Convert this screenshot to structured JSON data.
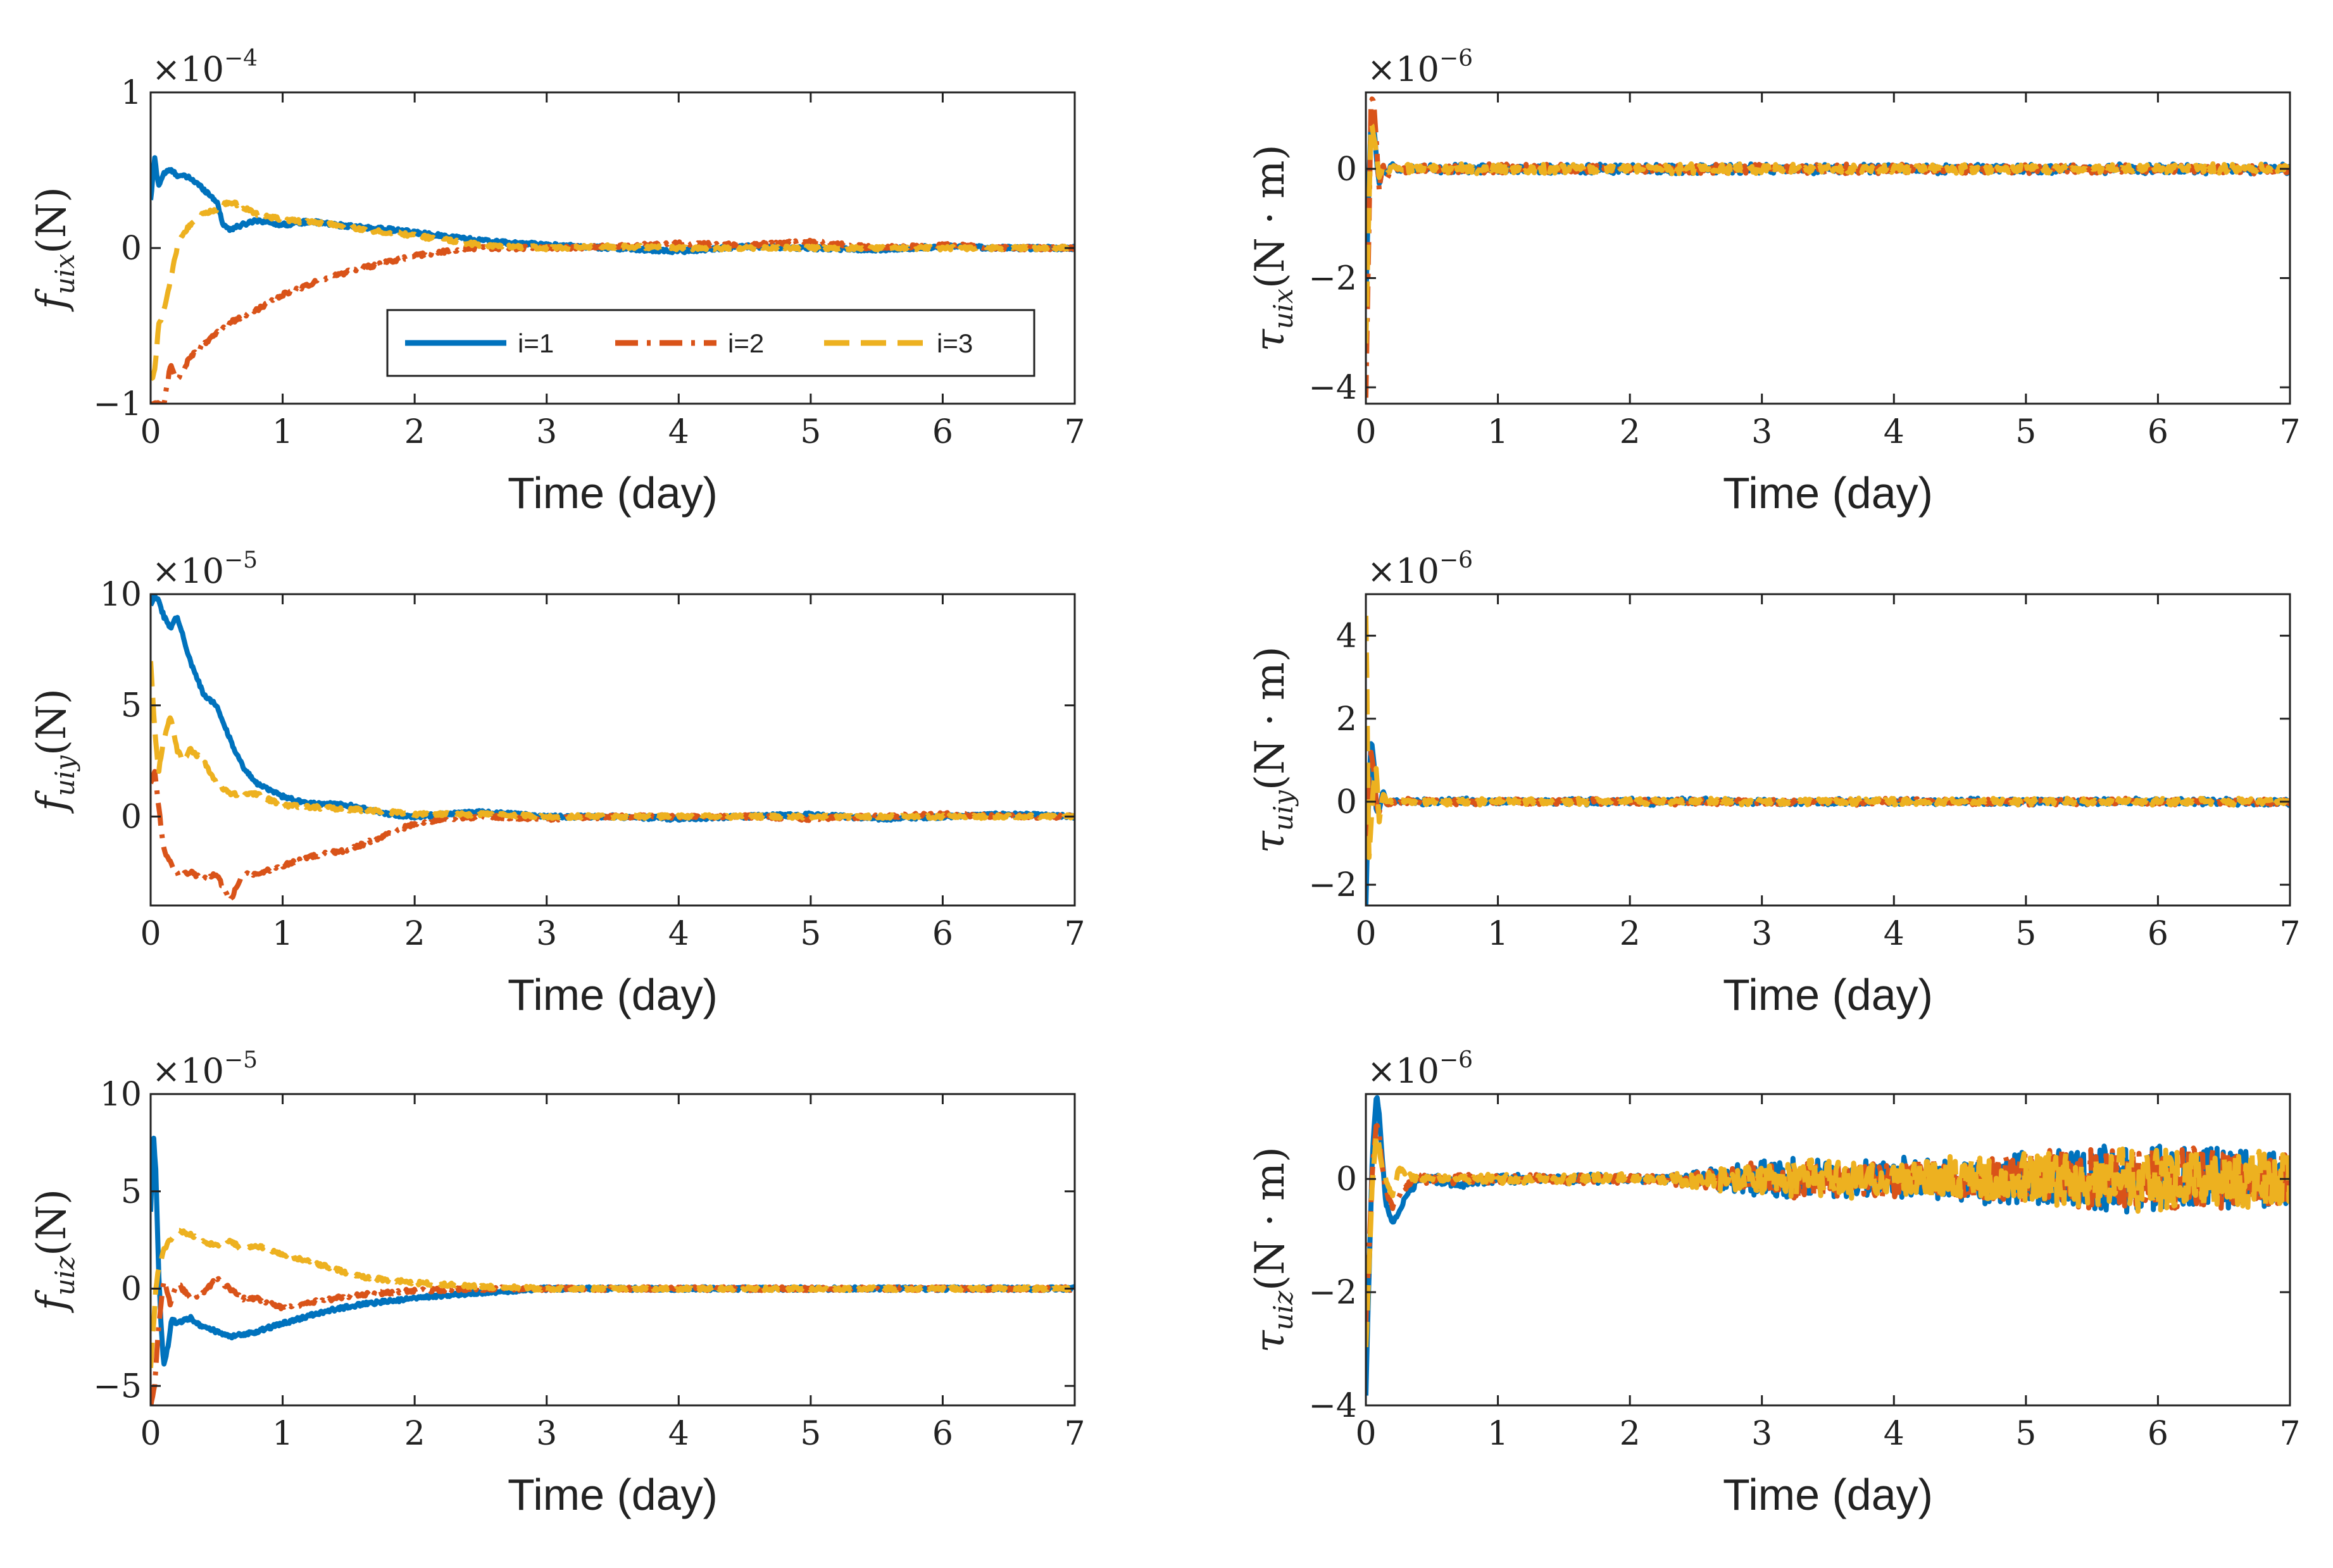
{
  "colors": {
    "series1": "#0072BD",
    "series2": "#D95319",
    "series3": "#EDB120",
    "axis": "#222222"
  },
  "legend": {
    "placement": "top-left panel, lower-right",
    "entries": [
      "i=1",
      "i=2",
      "i=3"
    ]
  },
  "chart_data": [
    {
      "type": "line",
      "id": "fuix",
      "ylabel": {
        "sym": "f",
        "sub": "uix",
        "unit": "(N)"
      },
      "exponent": {
        "base": "×10",
        "power": "−4"
      },
      "xlabel": "Time (day)",
      "xlim": [
        0,
        7
      ],
      "ylim": [
        -1,
        1
      ],
      "xticks": [
        "0",
        "1",
        "2",
        "3",
        "4",
        "5",
        "6",
        "7"
      ],
      "yticks": [
        {
          "v": -1,
          "t": "−1"
        },
        {
          "v": 0,
          "t": "0"
        },
        {
          "v": 1,
          "t": "1"
        }
      ],
      "series": [
        {
          "name": "i=1",
          "x": [
            0,
            0.03,
            0.06,
            0.1,
            0.15,
            0.2,
            0.3,
            0.4,
            0.5,
            0.55,
            0.6,
            0.7,
            0.8,
            1.0,
            1.2,
            1.5,
            1.8,
            2.2,
            2.6,
            3,
            3.5,
            4,
            4.5,
            5,
            5.5,
            6,
            6.5,
            7
          ],
          "values": [
            0.3,
            0.58,
            0.4,
            0.48,
            0.5,
            0.47,
            0.45,
            0.38,
            0.3,
            0.15,
            0.12,
            0.15,
            0.18,
            0.15,
            0.17,
            0.14,
            0.12,
            0.08,
            0.04,
            0.02,
            0.0,
            -0.02,
            0.01,
            0.0,
            -0.01,
            0.01,
            0.0,
            0.0
          ]
        },
        {
          "name": "i=2",
          "x": [
            0,
            0.05,
            0.1,
            0.15,
            0.2,
            0.3,
            0.4,
            0.5,
            0.6,
            0.8,
            1.0,
            1.3,
            1.6,
            2.0,
            2.4,
            3,
            3.5,
            4,
            4.5,
            5,
            5.5,
            6,
            6.5,
            7
          ],
          "values": [
            -1.0,
            -1.0,
            -1.0,
            -0.75,
            -0.85,
            -0.7,
            -0.62,
            -0.55,
            -0.48,
            -0.4,
            -0.3,
            -0.2,
            -0.13,
            -0.05,
            0.0,
            0.0,
            0.01,
            0.03,
            0.02,
            0.04,
            0.0,
            0.02,
            0.0,
            0.0
          ]
        },
        {
          "name": "i=3",
          "x": [
            0,
            0.03,
            0.06,
            0.1,
            0.15,
            0.2,
            0.25,
            0.3,
            0.4,
            0.5,
            0.6,
            0.8,
            1.0,
            1.3,
            1.6,
            2.0,
            2.5,
            3,
            3.5,
            4,
            4.5,
            5,
            5.5,
            6,
            6.5,
            7
          ],
          "values": [
            -0.85,
            -0.8,
            -0.5,
            -0.4,
            -0.2,
            0.0,
            0.1,
            0.15,
            0.22,
            0.25,
            0.3,
            0.22,
            0.18,
            0.16,
            0.12,
            0.08,
            0.02,
            0.0,
            0.01,
            0.0,
            0.0,
            0.0,
            0.0,
            0.0,
            0.0,
            0.0
          ]
        }
      ]
    },
    {
      "type": "line",
      "id": "tuix",
      "ylabel": {
        "sym": "τ",
        "sub": "uix",
        "unit": "(N · m)"
      },
      "exponent": {
        "base": "×10",
        "power": "−6"
      },
      "xlabel": "Time (day)",
      "xlim": [
        0,
        7
      ],
      "ylim": [
        -4.3,
        1.4
      ],
      "xticks": [
        "0",
        "1",
        "2",
        "3",
        "4",
        "5",
        "6",
        "7"
      ],
      "yticks": [
        {
          "v": -4,
          "t": "−4"
        },
        {
          "v": -2,
          "t": "−2"
        },
        {
          "v": 0,
          "t": "0"
        }
      ],
      "series": [
        {
          "name": "i=1",
          "x": [
            0,
            0.02,
            0.04,
            0.06,
            0.08,
            0.1,
            0.13,
            0.16,
            0.2,
            0.25,
            0.3,
            7
          ],
          "values": [
            -2.5,
            -0.5,
            1.0,
            0.8,
            0.2,
            -0.3,
            0.0,
            -0.1,
            0.1,
            -0.05,
            0.0,
            0.0
          ],
          "noise": 0.12
        },
        {
          "name": "i=2",
          "x": [
            0,
            0.02,
            0.04,
            0.06,
            0.08,
            0.1,
            0.13,
            0.16,
            0.2,
            0.25,
            0.3,
            7
          ],
          "values": [
            -4.2,
            -1.5,
            1.3,
            1.2,
            0.5,
            -0.4,
            0.1,
            -0.2,
            0.05,
            0.0,
            0.0,
            0.0
          ],
          "noise": 0.12
        },
        {
          "name": "i=3",
          "x": [
            0,
            0.02,
            0.04,
            0.06,
            0.08,
            0.1,
            0.13,
            0.16,
            0.2,
            0.25,
            0.3,
            7
          ],
          "values": [
            -3.2,
            -1.0,
            0.9,
            0.6,
            0.3,
            -0.2,
            0.05,
            -0.1,
            0.05,
            0.0,
            0.0,
            0.0
          ],
          "noise": 0.12
        }
      ]
    },
    {
      "type": "line",
      "id": "fuiy",
      "ylabel": {
        "sym": "f",
        "sub": "uiy",
        "unit": "(N)"
      },
      "exponent": {
        "base": "×10",
        "power": "−5"
      },
      "xlabel": "Time (day)",
      "xlim": [
        0,
        7
      ],
      "ylim": [
        -4,
        10
      ],
      "xticks": [
        "0",
        "1",
        "2",
        "3",
        "4",
        "5",
        "6",
        "7"
      ],
      "yticks": [
        {
          "v": 0,
          "t": "0"
        },
        {
          "v": 5,
          "t": "5"
        },
        {
          "v": 10,
          "t": "10"
        }
      ],
      "series": [
        {
          "name": "i=1",
          "x": [
            0,
            0.03,
            0.06,
            0.1,
            0.15,
            0.2,
            0.25,
            0.3,
            0.4,
            0.5,
            0.6,
            0.7,
            0.8,
            1.0,
            1.2,
            1.5,
            1.8,
            2.0,
            2.5,
            3,
            3.5,
            4,
            4.5,
            5,
            5.5,
            6,
            6.5,
            7
          ],
          "values": [
            9.5,
            10.0,
            9.7,
            9.0,
            8.5,
            9.0,
            8.0,
            7.0,
            5.5,
            5.0,
            3.5,
            2.2,
            1.5,
            0.9,
            0.6,
            0.5,
            0.1,
            0.0,
            0.2,
            0.0,
            0.0,
            -0.1,
            0.0,
            0.1,
            -0.1,
            0.0,
            0.1,
            0.0
          ]
        },
        {
          "name": "i=2",
          "x": [
            0,
            0.03,
            0.06,
            0.1,
            0.15,
            0.2,
            0.3,
            0.4,
            0.5,
            0.6,
            0.7,
            0.8,
            1.0,
            1.2,
            1.5,
            1.8,
            2.0,
            2.5,
            3,
            3.5,
            4,
            4.5,
            5,
            5.5,
            6,
            6.5,
            7
          ],
          "values": [
            1.5,
            2.0,
            0.5,
            -1.5,
            -2.0,
            -2.6,
            -2.5,
            -2.8,
            -2.6,
            -3.8,
            -2.6,
            -2.6,
            -2.2,
            -1.8,
            -1.5,
            -0.8,
            -0.3,
            0.0,
            -0.1,
            0.0,
            0.0,
            0.0,
            -0.1,
            0.0,
            0.1,
            0.0,
            0.0
          ]
        },
        {
          "name": "i=3",
          "x": [
            0,
            0.03,
            0.06,
            0.1,
            0.15,
            0.2,
            0.25,
            0.3,
            0.4,
            0.5,
            0.6,
            0.8,
            1.0,
            1.3,
            1.6,
            2.0,
            2.5,
            3,
            3.5,
            4,
            4.5,
            5,
            5.5,
            6,
            6.5,
            7
          ],
          "values": [
            7.0,
            4.0,
            2.0,
            3.5,
            4.5,
            3.0,
            2.5,
            3.0,
            2.5,
            1.5,
            1.0,
            1.0,
            0.5,
            0.4,
            0.3,
            0.1,
            0.1,
            0.0,
            0.0,
            0.0,
            0.0,
            0.0,
            0.0,
            0.0,
            0.0,
            0.0
          ]
        }
      ]
    },
    {
      "type": "line",
      "id": "tuiy",
      "ylabel": {
        "sym": "τ",
        "sub": "uiy",
        "unit": "(N · m)"
      },
      "exponent": {
        "base": "×10",
        "power": "−6"
      },
      "xlabel": "Time (day)",
      "xlim": [
        0,
        7
      ],
      "ylim": [
        -2.5,
        5
      ],
      "xticks": [
        "0",
        "1",
        "2",
        "3",
        "4",
        "5",
        "6",
        "7"
      ],
      "yticks": [
        {
          "v": -2,
          "t": "−2"
        },
        {
          "v": 0,
          "t": "0"
        },
        {
          "v": 2,
          "t": "2"
        },
        {
          "v": 4,
          "t": "4"
        }
      ],
      "series": [
        {
          "name": "i=1",
          "x": [
            0,
            0.02,
            0.04,
            0.06,
            0.08,
            0.1,
            0.13,
            0.16,
            0.2,
            0.25,
            0.3,
            7
          ],
          "values": [
            -2.5,
            0.0,
            1.5,
            1.0,
            -0.3,
            -0.2,
            0.3,
            -0.1,
            0.05,
            0.0,
            0.0,
            0.0
          ],
          "noise": 0.09
        },
        {
          "name": "i=2",
          "x": [
            0,
            0.02,
            0.04,
            0.06,
            0.08,
            0.1,
            0.13,
            0.16,
            0.2,
            0.25,
            0.3,
            7
          ],
          "values": [
            -1.0,
            0.5,
            1.2,
            0.8,
            0.0,
            -0.3,
            0.2,
            -0.1,
            0.0,
            0.0,
            0.0,
            0.0
          ],
          "noise": 0.09
        },
        {
          "name": "i=3",
          "x": [
            0,
            0.01,
            0.02,
            0.04,
            0.06,
            0.08,
            0.1,
            0.13,
            0.16,
            0.2,
            0.25,
            7
          ],
          "values": [
            4.5,
            2.5,
            -1.5,
            -0.5,
            0.5,
            0.8,
            -0.5,
            0.2,
            0.0,
            0.0,
            0.0,
            0.0
          ],
          "noise": 0.09
        }
      ]
    },
    {
      "type": "line",
      "id": "fuiz",
      "ylabel": {
        "sym": "f",
        "sub": "uiz",
        "unit": "(N)"
      },
      "exponent": {
        "base": "×10",
        "power": "−5"
      },
      "xlabel": "Time (day)",
      "xlim": [
        0,
        7
      ],
      "ylim": [
        -6,
        10
      ],
      "xticks": [
        "0",
        "1",
        "2",
        "3",
        "4",
        "5",
        "6",
        "7"
      ],
      "yticks": [
        {
          "v": -5,
          "t": "−5"
        },
        {
          "v": 0,
          "t": "0"
        },
        {
          "v": 5,
          "t": "5"
        },
        {
          "v": 10,
          "t": "10"
        }
      ],
      "series": [
        {
          "name": "i=1",
          "x": [
            0,
            0.02,
            0.04,
            0.06,
            0.08,
            0.1,
            0.13,
            0.16,
            0.2,
            0.3,
            0.4,
            0.5,
            0.6,
            0.8,
            1.0,
            1.3,
            1.6,
            2.0,
            2.5,
            3,
            3.5,
            4,
            5,
            6,
            7
          ],
          "values": [
            4,
            8,
            6,
            1,
            -2,
            -4,
            -3,
            -1.5,
            -1.8,
            -1.5,
            -2.0,
            -2.2,
            -2.5,
            -2.2,
            -1.8,
            -1.2,
            -0.8,
            -0.5,
            -0.2,
            0.0,
            0.0,
            0.0,
            0.0,
            0.0,
            0.0
          ]
        },
        {
          "name": "i=2",
          "x": [
            0,
            0.03,
            0.06,
            0.1,
            0.15,
            0.2,
            0.3,
            0.4,
            0.5,
            0.6,
            0.7,
            0.8,
            1.0,
            1.3,
            1.6,
            2.0,
            2.5,
            3,
            3.5,
            4,
            5,
            6,
            7
          ],
          "values": [
            -6,
            -5,
            -2,
            0.5,
            -0.8,
            0.3,
            -0.5,
            -0.2,
            0.5,
            0.0,
            -0.5,
            -0.5,
            -1.0,
            -0.6,
            -0.3,
            -0.1,
            0.0,
            0.0,
            0.0,
            0.0,
            0.0,
            0.0,
            0.0
          ]
        },
        {
          "name": "i=3",
          "x": [
            0,
            0.02,
            0.04,
            0.06,
            0.08,
            0.1,
            0.15,
            0.2,
            0.3,
            0.4,
            0.5,
            0.6,
            0.7,
            0.8,
            1.0,
            1.3,
            1.6,
            2.0,
            2.5,
            3,
            3.5,
            4,
            5,
            6,
            7
          ],
          "values": [
            -4,
            -2,
            0,
            1.0,
            1.5,
            2.0,
            2.5,
            3.0,
            2.8,
            2.4,
            2.2,
            2.5,
            2.0,
            2.2,
            1.8,
            1.2,
            0.6,
            0.3,
            0.1,
            0.0,
            0.0,
            0.0,
            0.0,
            0.0,
            0.0
          ]
        }
      ]
    },
    {
      "type": "line",
      "id": "tuiz",
      "ylabel": {
        "sym": "τ",
        "sub": "uiz",
        "unit": "(N · m)"
      },
      "exponent": {
        "base": "×10",
        "power": "−6"
      },
      "xlabel": "Time (day)",
      "xlim": [
        0,
        7
      ],
      "ylim": [
        -4,
        1.5
      ],
      "xticks": [
        "0",
        "1",
        "2",
        "3",
        "4",
        "5",
        "6",
        "7"
      ],
      "yticks": [
        {
          "v": -4,
          "t": "−4"
        },
        {
          "v": -2,
          "t": "−2"
        },
        {
          "v": 0,
          "t": "0"
        }
      ],
      "series": [
        {
          "name": "i=1",
          "x": [
            0,
            0.02,
            0.05,
            0.08,
            0.1,
            0.12,
            0.15,
            0.2,
            0.25,
            0.3,
            0.4,
            0.5,
            0.7,
            1.0,
            1.5,
            2.0,
            7
          ],
          "values": [
            -3.8,
            -2.0,
            0.5,
            1.5,
            1.2,
            0.5,
            -0.4,
            -0.8,
            -0.6,
            -0.3,
            0.0,
            0.0,
            -0.1,
            0.0,
            0.0,
            0.0,
            0.0
          ],
          "noise": 0.12,
          "burst": 0.42
        },
        {
          "name": "i=2",
          "x": [
            0,
            0.02,
            0.05,
            0.08,
            0.1,
            0.12,
            0.15,
            0.2,
            0.25,
            0.3,
            0.4,
            0.5,
            0.7,
            1.0,
            1.5,
            2.0,
            7
          ],
          "values": [
            -2.5,
            -1.5,
            0.2,
            1.0,
            0.8,
            0.3,
            -0.2,
            -0.5,
            -0.3,
            -0.1,
            0.0,
            0.0,
            0.0,
            0.0,
            0.0,
            0.0,
            0.0
          ],
          "noise": 0.12,
          "burst": 0.42
        },
        {
          "name": "i=3",
          "x": [
            0,
            0.02,
            0.05,
            0.08,
            0.1,
            0.12,
            0.15,
            0.2,
            0.25,
            0.3,
            0.4,
            0.5,
            0.7,
            1.0,
            1.5,
            2.0,
            7
          ],
          "values": [
            -3.0,
            -1.8,
            0.0,
            0.8,
            0.6,
            0.2,
            0.0,
            -0.3,
            0.2,
            0.1,
            0.0,
            0.0,
            0.0,
            0.0,
            0.0,
            0.0,
            0.0
          ],
          "noise": 0.12,
          "burst": 0.4
        }
      ]
    }
  ]
}
